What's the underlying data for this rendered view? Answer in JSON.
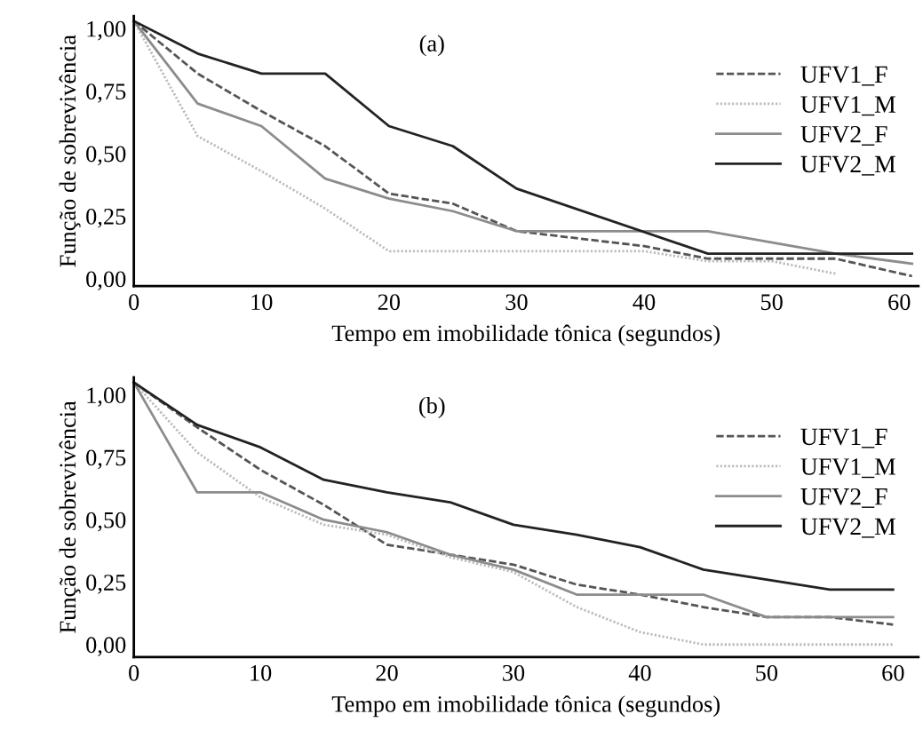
{
  "chart_data": [
    {
      "type": "line",
      "xlabel": "Tempo em imobilidade tônica (segundos)",
      "ylabel": "Função de sobrevivência",
      "annotations": [
        "(a)"
      ],
      "xlim": [
        0,
        61.5
      ],
      "ylim": [
        -0.03,
        1.05
      ],
      "xticks": [
        0,
        10,
        20,
        30,
        40,
        50,
        60
      ],
      "yticks": [
        {
          "value": 0,
          "label": "0,00"
        },
        {
          "value": 0.25,
          "label": "0,25"
        },
        {
          "value": 0.5,
          "label": "0,50"
        },
        {
          "value": 0.75,
          "label": "0,75"
        },
        {
          "value": 1,
          "label": "1,00"
        }
      ],
      "grid": false,
      "legend": "top right",
      "marker": "none",
      "series": [
        {
          "name": "UFV1_F",
          "color": "#555555",
          "line_style": "dashed",
          "x": [
            0,
            5,
            10,
            15,
            20,
            25,
            30,
            40,
            45,
            55,
            61
          ],
          "values": [
            1.03,
            0.82,
            0.67,
            0.53,
            0.34,
            0.3,
            0.19,
            0.13,
            0.08,
            0.08,
            0.01
          ]
        },
        {
          "name": "UFV1_M",
          "color": "#bbbbbb",
          "line_style": "dotted",
          "x": [
            0,
            5,
            10,
            15,
            20,
            40,
            45,
            50,
            55
          ],
          "values": [
            1.03,
            0.57,
            0.43,
            0.28,
            0.11,
            0.11,
            0.07,
            0.07,
            0.02
          ]
        },
        {
          "name": "UFV2_F",
          "color": "#8c8c8c",
          "line_style": "solid",
          "x": [
            0,
            5,
            10,
            15,
            20,
            25,
            30,
            45,
            55,
            61
          ],
          "values": [
            1.03,
            0.7,
            0.61,
            0.4,
            0.32,
            0.27,
            0.19,
            0.19,
            0.1,
            0.06
          ]
        },
        {
          "name": "UFV2_M",
          "color": "#222222",
          "line_style": "solid",
          "x": [
            0,
            5,
            10,
            15,
            20,
            25,
            30,
            45,
            61
          ],
          "values": [
            1.03,
            0.9,
            0.82,
            0.82,
            0.61,
            0.53,
            0.36,
            0.1,
            0.1
          ]
        }
      ]
    },
    {
      "type": "line",
      "xlabel": "Tempo em imobilidade tônica (segundos)",
      "ylabel": "Função de sobrevivência",
      "annotations": [
        "(b)"
      ],
      "xlim": [
        0,
        62
      ],
      "ylim": [
        -0.05,
        1.07
      ],
      "xticks": [
        0,
        10,
        20,
        30,
        40,
        50,
        60
      ],
      "yticks": [
        {
          "value": 0,
          "label": "0,00"
        },
        {
          "value": 0.25,
          "label": "0,25"
        },
        {
          "value": 0.5,
          "label": "0,50"
        },
        {
          "value": 0.75,
          "label": "0,75"
        },
        {
          "value": 1,
          "label": "1,00"
        }
      ],
      "grid": false,
      "legend": "top right",
      "marker": "none",
      "series": [
        {
          "name": "UFV1_F",
          "color": "#555555",
          "line_style": "dashed",
          "x": [
            0,
            5,
            10,
            15,
            20,
            25,
            30,
            35,
            40,
            45,
            50,
            55,
            60
          ],
          "values": [
            1.05,
            0.87,
            0.7,
            0.56,
            0.4,
            0.36,
            0.32,
            0.24,
            0.2,
            0.15,
            0.11,
            0.11,
            0.08
          ]
        },
        {
          "name": "UFV1_M",
          "color": "#bbbbbb",
          "line_style": "dotted",
          "x": [
            0,
            5,
            10,
            15,
            20,
            25,
            30,
            35,
            40,
            45,
            60
          ],
          "values": [
            1.05,
            0.77,
            0.59,
            0.48,
            0.44,
            0.35,
            0.29,
            0.15,
            0.05,
            0.0,
            0.0
          ]
        },
        {
          "name": "UFV2_F",
          "color": "#8c8c8c",
          "line_style": "solid",
          "x": [
            0,
            5,
            10,
            15,
            20,
            25,
            30,
            35,
            45,
            50,
            60
          ],
          "values": [
            1.05,
            0.61,
            0.61,
            0.5,
            0.45,
            0.36,
            0.3,
            0.2,
            0.2,
            0.11,
            0.11
          ]
        },
        {
          "name": "UFV2_M",
          "color": "#222222",
          "line_style": "solid",
          "x": [
            0,
            5,
            10,
            15,
            20,
            25,
            30,
            35,
            40,
            45,
            50,
            55,
            60
          ],
          "values": [
            1.05,
            0.88,
            0.79,
            0.66,
            0.61,
            0.57,
            0.48,
            0.44,
            0.39,
            0.3,
            0.26,
            0.22,
            0.22
          ]
        }
      ]
    }
  ]
}
